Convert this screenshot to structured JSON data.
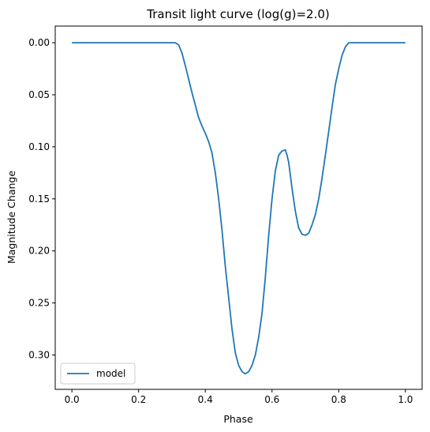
{
  "chart_data": {
    "type": "line",
    "title": "Transit light curve (log(g)=2.0)",
    "xlabel": "Phase",
    "ylabel": "Magnitude Change",
    "xlim": [
      -0.05,
      1.05
    ],
    "ylim": [
      0.333,
      -0.016
    ],
    "y_inverted": true,
    "grid": false,
    "legend_position": "lower-left",
    "xticks": [
      "0.0",
      "0.2",
      "0.4",
      "0.6",
      "0.8",
      "1.0"
    ],
    "xtick_values": [
      0.0,
      0.2,
      0.4,
      0.6,
      0.8,
      1.0
    ],
    "yticks": [
      "0.00",
      "0.05",
      "0.10",
      "0.15",
      "0.20",
      "0.25",
      "0.30"
    ],
    "ytick_values": [
      0.0,
      0.05,
      0.1,
      0.15,
      0.2,
      0.25,
      0.3
    ],
    "series": [
      {
        "name": "model",
        "color": "#1f77b4",
        "x": [
          0.0,
          0.1,
          0.2,
          0.3,
          0.31,
          0.32,
          0.33,
          0.34,
          0.35,
          0.36,
          0.37,
          0.38,
          0.39,
          0.4,
          0.41,
          0.42,
          0.43,
          0.44,
          0.45,
          0.46,
          0.47,
          0.48,
          0.49,
          0.5,
          0.51,
          0.52,
          0.53,
          0.535,
          0.54,
          0.55,
          0.56,
          0.57,
          0.58,
          0.59,
          0.6,
          0.61,
          0.62,
          0.63,
          0.64,
          0.645,
          0.65,
          0.66,
          0.67,
          0.68,
          0.69,
          0.7,
          0.71,
          0.72,
          0.73,
          0.74,
          0.75,
          0.76,
          0.77,
          0.78,
          0.79,
          0.8,
          0.81,
          0.82,
          0.83,
          0.84,
          0.85,
          0.9,
          1.0
        ],
        "y": [
          0.0,
          0.0,
          0.0,
          0.0,
          0.0,
          0.002,
          0.01,
          0.022,
          0.035,
          0.048,
          0.06,
          0.072,
          0.08,
          0.087,
          0.095,
          0.106,
          0.125,
          0.15,
          0.18,
          0.215,
          0.245,
          0.275,
          0.298,
          0.31,
          0.316,
          0.318,
          0.316,
          0.313,
          0.31,
          0.3,
          0.283,
          0.26,
          0.225,
          0.185,
          0.15,
          0.123,
          0.108,
          0.104,
          0.103,
          0.108,
          0.115,
          0.14,
          0.162,
          0.178,
          0.184,
          0.185,
          0.183,
          0.175,
          0.165,
          0.15,
          0.13,
          0.108,
          0.085,
          0.062,
          0.04,
          0.025,
          0.012,
          0.004,
          0.0,
          0.0,
          0.0,
          0.0,
          0.0
        ]
      }
    ]
  }
}
